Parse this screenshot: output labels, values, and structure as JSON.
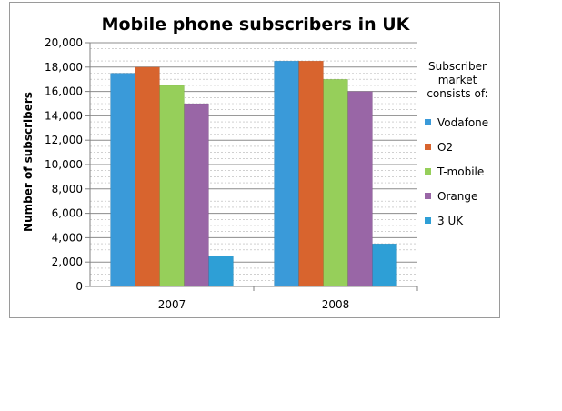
{
  "chart_data": {
    "type": "bar",
    "title": "Mobile phone subscribers in UK",
    "xlabel": "",
    "ylabel": "Number of subscribers",
    "categories": [
      "2007",
      "2008"
    ],
    "ylim": [
      0,
      20000
    ],
    "yticks": [
      "0",
      "2,000",
      "4,000",
      "6,000",
      "8,000",
      "10,000",
      "12,000",
      "14,000",
      "16,000",
      "18,000",
      "20,000"
    ],
    "grid": true,
    "legend_title": [
      "Subscriber",
      "market",
      "consists of:"
    ],
    "legend_position": "right",
    "series": [
      {
        "name": "Vodafone",
        "color": "#3a9ad9",
        "values": [
          17500,
          18500
        ]
      },
      {
        "name": "O2",
        "color": "#d8642e",
        "values": [
          18000,
          18500
        ]
      },
      {
        "name": "T-mobile",
        "color": "#96cf5a",
        "values": [
          16500,
          17000
        ]
      },
      {
        "name": "Orange",
        "color": "#9966a6",
        "values": [
          15000,
          16000
        ]
      },
      {
        "name": "3 UK",
        "color": "#2e9fd6",
        "values": [
          2500,
          3500
        ]
      }
    ]
  }
}
